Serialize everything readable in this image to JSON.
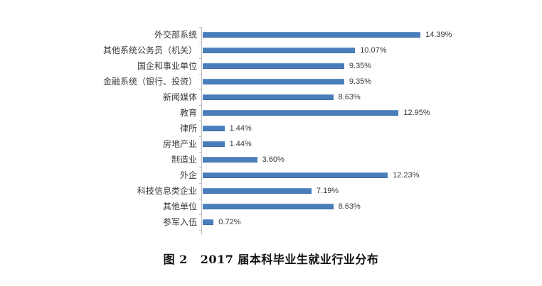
{
  "caption": {
    "figure_no": "图 2",
    "title": "2017 届本科毕业生就业行业分布"
  },
  "chart_data": {
    "type": "bar",
    "orientation": "horizontal",
    "title": "2017 届本科毕业生就业行业分布",
    "figure_label": "图 2",
    "xlabel": "",
    "ylabel": "",
    "grid": false,
    "legend": null,
    "unit": "%",
    "categories": [
      "外交部系统",
      "其他系统公务员（机关）",
      "国企和事业单位",
      "金融系统（银行、投资）",
      "新闻媒体",
      "教育",
      "律所",
      "房地产业",
      "制造业",
      "外企",
      "科技信息类企业",
      "其他单位",
      "参军入伍"
    ],
    "values": [
      14.39,
      10.07,
      9.35,
      9.35,
      8.63,
      12.95,
      1.44,
      1.44,
      3.6,
      12.23,
      7.19,
      8.63,
      0.72
    ],
    "value_labels": [
      "14.39%",
      "10.07%",
      "9.35%",
      "9.35%",
      "8.63%",
      "12.95%",
      "1.44%",
      "1.44%",
      "3.60%",
      "12.23%",
      "7.19%",
      "8.63%",
      "0.72%"
    ],
    "bar_color": "#4a7ebb"
  }
}
